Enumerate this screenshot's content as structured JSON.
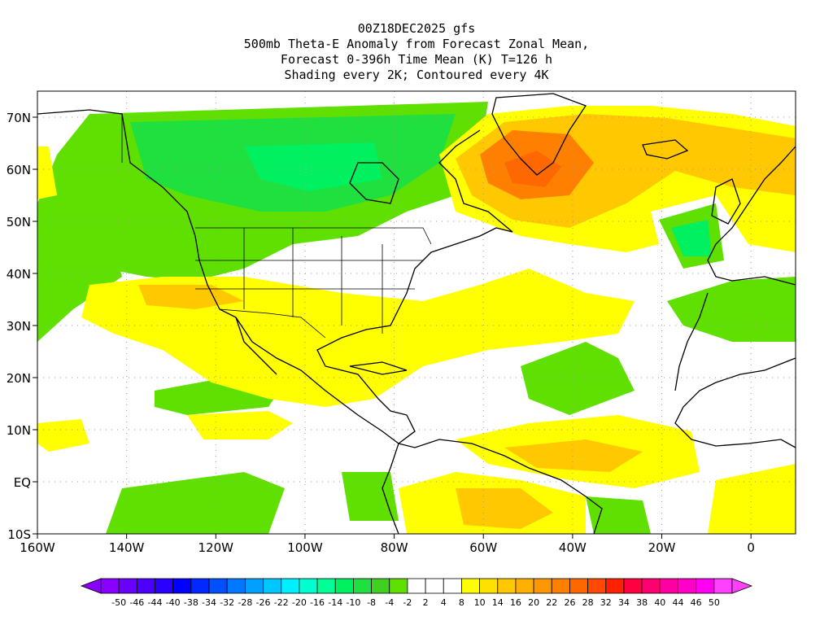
{
  "title": {
    "line1": "00Z18DEC2025 gfs",
    "line2": "500mb Theta-E Anomaly from Forecast Zonal Mean,",
    "line3": "Forecast 0-396h Time Mean (K) T=126 h",
    "line4": "Shading every 2K; Contoured every 4K"
  },
  "axes": {
    "x_ticks": [
      "160W",
      "140W",
      "120W",
      "100W",
      "80W",
      "60W",
      "40W",
      "20W",
      "0"
    ],
    "y_ticks": [
      "70N",
      "60N",
      "50N",
      "40N",
      "30N",
      "20N",
      "10N",
      "EQ",
      "10S"
    ]
  },
  "colorbar": {
    "labels": [
      "-50",
      "-46",
      "-44",
      "-40",
      "-38",
      "-34",
      "-32",
      "-28",
      "-26",
      "-22",
      "-20",
      "-16",
      "-14",
      "-10",
      "-8",
      "-4",
      "-2",
      "2",
      "4",
      "8",
      "10",
      "14",
      "16",
      "20",
      "22",
      "26",
      "28",
      "32",
      "34",
      "38",
      "40",
      "44",
      "46",
      "50"
    ],
    "colors": [
      "#8a00ff",
      "#6a00ff",
      "#4b00ff",
      "#2a00ff",
      "#0000ff",
      "#0028ff",
      "#0050ff",
      "#0078ff",
      "#00a0ff",
      "#00c8ff",
      "#00f0ff",
      "#00ffd0",
      "#00ff96",
      "#00f060",
      "#20e040",
      "#40d020",
      "#60e000",
      "#ffffff",
      "#ffffff",
      "#ffffff",
      "#ffff00",
      "#ffe000",
      "#ffc800",
      "#ffb000",
      "#ff9800",
      "#ff8000",
      "#ff6800",
      "#ff4800",
      "#ff2000",
      "#ff0040",
      "#ff0070",
      "#ff00a0",
      "#ff00c8",
      "#ff00f0",
      "#ff40ff"
    ]
  },
  "map_colors": {
    "green": "#60e000",
    "green2": "#20e040",
    "teal": "#00f060",
    "yellow": "#ffff00",
    "yellow2": "#ffe000",
    "orange": "#ffc800",
    "orange2": "#ffb000",
    "orange3": "#ff8000",
    "red": "#ff6800"
  }
}
